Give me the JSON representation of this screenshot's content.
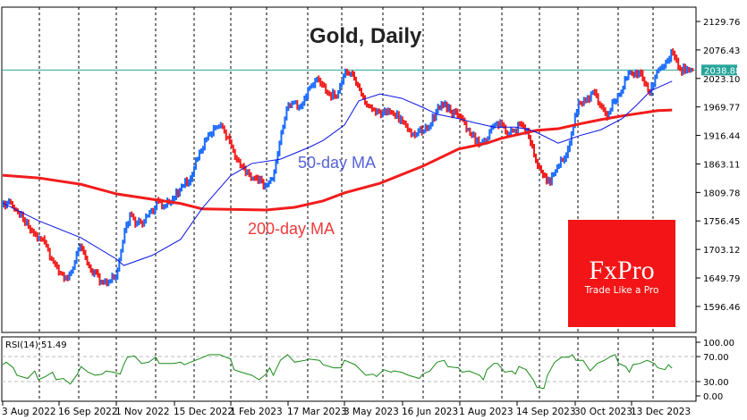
{
  "chart_data": {
    "type": "candlestick",
    "title": "Gold, Daily",
    "colors": {
      "up": "#1a6bff",
      "down": "#f21c1c",
      "ma50": "#0a14e6",
      "ma200": "#f21c1c",
      "last_price": "#26a69a",
      "rsi": "#1a8a1a",
      "logo_bg": "#f21416"
    },
    "price_axis": {
      "ticks": [
        "2129.76",
        "2076.43",
        "2023.10",
        "1969.77",
        "1916.44",
        "1863.11",
        "1809.78",
        "1756.45",
        "1703.12",
        "1649.79",
        "1596.46"
      ],
      "range": [
        1548,
        2156
      ]
    },
    "last_price": "2038.88",
    "x_ticks": [
      "3 Aug 2022",
      "16 Sep 2022",
      "1 Nov 2022",
      "15 Dec 2022",
      "1 Feb 2023",
      "17 Mar 2023",
      "3 May 2023",
      "16 Jun 2023",
      "1 Aug 2023",
      "14 Sep 2023",
      "30 Oct 2023",
      "13 Dec 2023"
    ],
    "closes": [
      1785,
      1794,
      1777,
      1760,
      1738,
      1722,
      1718,
      1685,
      1660,
      1652,
      1668,
      1710,
      1677,
      1660,
      1643,
      1643,
      1652,
      1718,
      1769,
      1752,
      1755,
      1777,
      1794,
      1785,
      1799,
      1815,
      1827,
      1856,
      1889,
      1919,
      1931,
      1932,
      1906,
      1872,
      1856,
      1835,
      1830,
      1824,
      1835,
      1902,
      1966,
      1978,
      1973,
      2003,
      2019,
      2011,
      1994,
      1989,
      2028,
      2031,
      2011,
      1978,
      1966,
      1961,
      1958,
      1956,
      1949,
      1927,
      1916,
      1922,
      1933,
      1961,
      1973,
      1961,
      1953,
      1939,
      1916,
      1899,
      1906,
      1933,
      1943,
      1919,
      1926,
      1936,
      1914,
      1869,
      1841,
      1827,
      1859,
      1874,
      1919,
      1978,
      1981,
      1998,
      1973,
      1949,
      1981,
      1998,
      2033,
      2036,
      2023,
      1994,
      2036,
      2045,
      2073,
      2045,
      2036,
      2039
    ],
    "ma50": {
      "label": "50-day MA",
      "points": [
        [
          0,
          1790
        ],
        [
          5,
          1757
        ],
        [
          11,
          1725
        ],
        [
          16,
          1685
        ],
        [
          17,
          1673
        ],
        [
          21,
          1692
        ],
        [
          25,
          1722
        ],
        [
          28,
          1780
        ],
        [
          32,
          1841
        ],
        [
          35,
          1864
        ],
        [
          39,
          1872
        ],
        [
          43,
          1894
        ],
        [
          45,
          1907
        ],
        [
          48,
          1936
        ],
        [
          50,
          1981
        ],
        [
          53,
          1994
        ],
        [
          56,
          1986
        ],
        [
          59,
          1969
        ],
        [
          61,
          1956
        ],
        [
          64,
          1948
        ],
        [
          66,
          1941
        ],
        [
          69,
          1932
        ],
        [
          72,
          1932
        ],
        [
          74,
          1927
        ],
        [
          75,
          1922
        ],
        [
          78,
          1902
        ],
        [
          81,
          1916
        ],
        [
          84,
          1927
        ],
        [
          87,
          1948
        ],
        [
          89,
          1973
        ],
        [
          91,
          2000
        ],
        [
          94,
          2018
        ]
      ]
    },
    "ma200": {
      "label": "200-day MA",
      "points": [
        [
          0,
          1842
        ],
        [
          5,
          1837
        ],
        [
          11,
          1825
        ],
        [
          16,
          1807
        ],
        [
          21,
          1797
        ],
        [
          25,
          1789
        ],
        [
          28,
          1779
        ],
        [
          37,
          1777
        ],
        [
          41,
          1782
        ],
        [
          45,
          1794
        ],
        [
          48,
          1809
        ],
        [
          53,
          1827
        ],
        [
          59,
          1859
        ],
        [
          64,
          1891
        ],
        [
          68,
          1902
        ],
        [
          70,
          1911
        ],
        [
          75,
          1926
        ],
        [
          78,
          1929
        ],
        [
          81,
          1938
        ],
        [
          84,
          1946
        ],
        [
          87,
          1953
        ],
        [
          92,
          1963
        ],
        [
          94,
          1964
        ]
      ]
    },
    "rsi": {
      "label": "RSI(14) 51.49",
      "ticks": [
        "100.00",
        "70.00",
        "30.00",
        "0.00"
      ],
      "levels": [
        70,
        30
      ],
      "points": [
        [
          0,
          57
        ],
        [
          0.5,
          61
        ],
        [
          1.5,
          52
        ],
        [
          2,
          40
        ],
        [
          3.5,
          35
        ],
        [
          4.5,
          47
        ],
        [
          5,
          33
        ],
        [
          6,
          38
        ],
        [
          7,
          45
        ],
        [
          7.5,
          33
        ],
        [
          8.5,
          35
        ],
        [
          9.5,
          26
        ],
        [
          10.5,
          42
        ],
        [
          11,
          54
        ],
        [
          12,
          45
        ],
        [
          13,
          40
        ],
        [
          14,
          42
        ],
        [
          14.5,
          47
        ],
        [
          15.5,
          45
        ],
        [
          16.5,
          42
        ],
        [
          17,
          57
        ],
        [
          17.5,
          69
        ],
        [
          18.5,
          71
        ],
        [
          19.5,
          59
        ],
        [
          20.5,
          61
        ],
        [
          21.5,
          69
        ],
        [
          22,
          59
        ],
        [
          24,
          59
        ],
        [
          25,
          61
        ],
        [
          25.5,
          57
        ],
        [
          27.5,
          66
        ],
        [
          29,
          73
        ],
        [
          30.5,
          73
        ],
        [
          32,
          66
        ],
        [
          32.5,
          49
        ],
        [
          33.5,
          45
        ],
        [
          35,
          40
        ],
        [
          36,
          33
        ],
        [
          37,
          42
        ],
        [
          37.5,
          52
        ],
        [
          38,
          40
        ],
        [
          39,
          64
        ],
        [
          40,
          73
        ],
        [
          41,
          61
        ],
        [
          42.5,
          64
        ],
        [
          43,
          66
        ],
        [
          44.5,
          64
        ],
        [
          45,
          57
        ],
        [
          46.5,
          52
        ],
        [
          47.5,
          52
        ],
        [
          48,
          64
        ],
        [
          49.5,
          57
        ],
        [
          51,
          40
        ],
        [
          52,
          42
        ],
        [
          52.5,
          38
        ],
        [
          53.5,
          49
        ],
        [
          54.5,
          45
        ],
        [
          55,
          47
        ],
        [
          56,
          45
        ],
        [
          57,
          40
        ],
        [
          58.5,
          35
        ],
        [
          59,
          42
        ],
        [
          60,
          47
        ],
        [
          61,
          61
        ],
        [
          62,
          64
        ],
        [
          62.5,
          54
        ],
        [
          64,
          52
        ],
        [
          64.5,
          45
        ],
        [
          65.5,
          47
        ],
        [
          67,
          40
        ],
        [
          67.5,
          33
        ],
        [
          68,
          49
        ],
        [
          69,
          59
        ],
        [
          69.5,
          59
        ],
        [
          70.5,
          45
        ],
        [
          71.5,
          47
        ],
        [
          72,
          42
        ],
        [
          72.5,
          54
        ],
        [
          73.5,
          49
        ],
        [
          74.5,
          33
        ],
        [
          75,
          21
        ],
        [
          76,
          19
        ],
        [
          76.5,
          40
        ],
        [
          77.5,
          61
        ],
        [
          78.5,
          69
        ],
        [
          79.5,
          69
        ],
        [
          80,
          73
        ],
        [
          80.5,
          64
        ],
        [
          81.5,
          64
        ],
        [
          82.5,
          47
        ],
        [
          83.5,
          59
        ],
        [
          84.5,
          64
        ],
        [
          85.5,
          71
        ],
        [
          86,
          73
        ],
        [
          86.5,
          59
        ],
        [
          87.5,
          54
        ],
        [
          88,
          45
        ],
        [
          88.5,
          57
        ],
        [
          89.5,
          59
        ],
        [
          90.5,
          64
        ],
        [
          91.5,
          59
        ],
        [
          92,
          52
        ],
        [
          93,
          49
        ],
        [
          93.5,
          57
        ],
        [
          94,
          51.49
        ]
      ]
    }
  },
  "logo": {
    "brand": "FxPro",
    "tagline": "Trade Like a Pro"
  }
}
